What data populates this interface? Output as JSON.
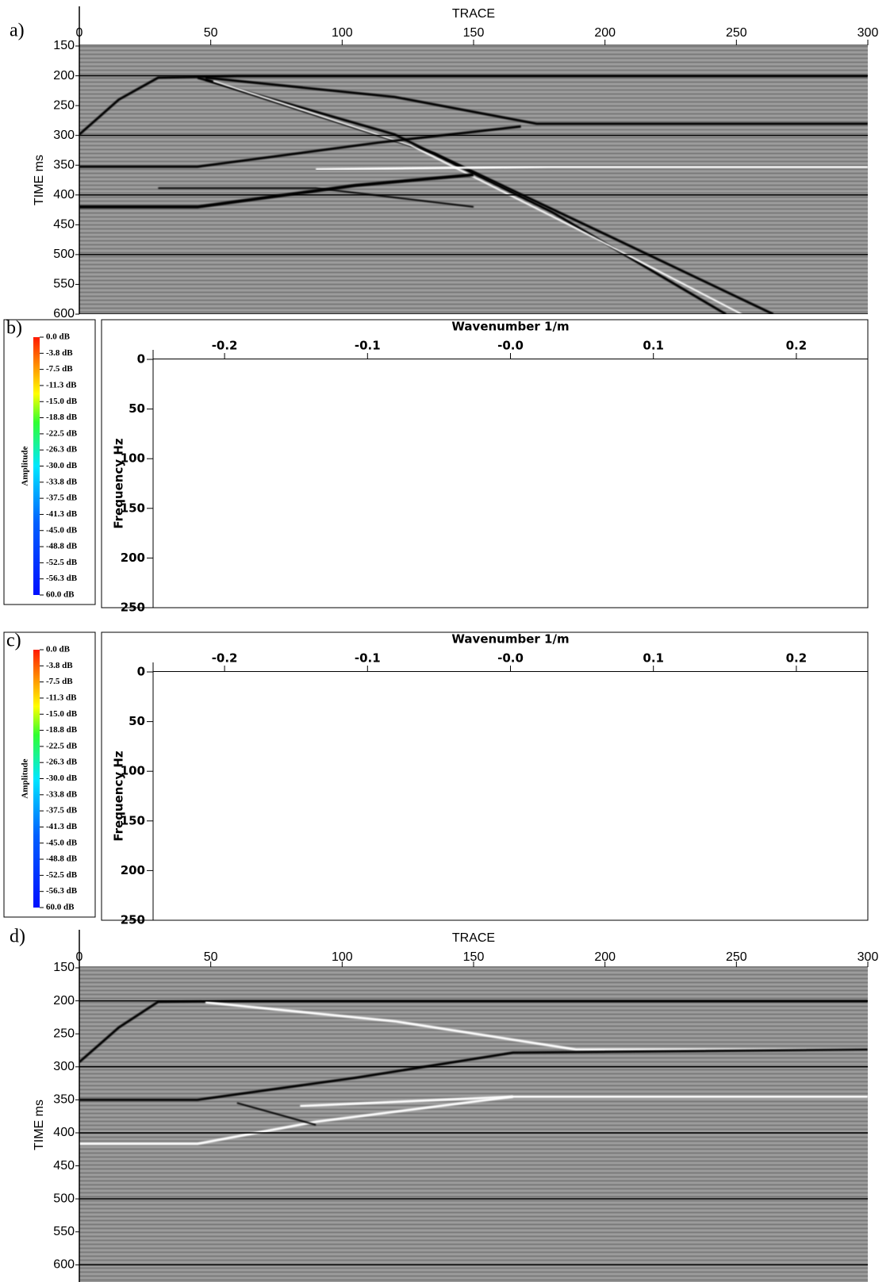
{
  "chart_data": [
    {
      "type": "seismic",
      "panel_label": "a)",
      "xlabel": "TRACE",
      "ylabel": "TIME ms",
      "xlim": [
        0,
        300
      ],
      "xticks": [
        0,
        50,
        100,
        150,
        200,
        250,
        300
      ],
      "ylim": [
        150,
        600
      ],
      "yticks": [
        150,
        200,
        250,
        300,
        350,
        400,
        450,
        500,
        550,
        600
      ]
    },
    {
      "type": "fk",
      "panel_label": "b)",
      "xlabel": "Wavenumber 1/m",
      "ylabel": "Frequency Hz",
      "xlim": [
        -0.25,
        0.25
      ],
      "xticks": [
        -0.2,
        -0.1,
        {
          "value": 0,
          "label": "-0.0"
        },
        0.1,
        0.2
      ],
      "ylim": [
        0,
        250
      ],
      "yticks": [
        0,
        50,
        100,
        150,
        200,
        250
      ],
      "grid": true,
      "hatched": false,
      "colorbar_label": "Amplitude",
      "colorbar_labels": [
        "0.0 dB",
        "-3.8 dB",
        "-7.5 dB",
        "-11.3 dB",
        "-15.0 dB",
        "-18.8 dB",
        "-22.5 dB",
        "-26.3 dB",
        "-30.0 dB",
        "-33.8 dB",
        "-37.5 dB",
        "-41.3 dB",
        "-45.0 dB",
        "-48.8 dB",
        "-52.5 dB",
        "-56.3 dB",
        "60.0 dB"
      ]
    },
    {
      "type": "fk",
      "panel_label": "c)",
      "xlabel": "Wavenumber 1/m",
      "ylabel": "Frequency Hz",
      "xlim": [
        -0.25,
        0.25
      ],
      "xticks": [
        -0.2,
        -0.1,
        {
          "value": 0,
          "label": "-0.0"
        },
        0.1,
        0.2
      ],
      "ylim": [
        0,
        250
      ],
      "yticks": [
        0,
        50,
        100,
        150,
        200,
        250
      ],
      "grid": true,
      "hatched": true,
      "colorbar_label": "Amplitude",
      "colorbar_labels": [
        "0.0 dB",
        "-3.8 dB",
        "-7.5 dB",
        "-11.3 dB",
        "-15.0 dB",
        "-18.8 dB",
        "-22.5 dB",
        "-26.3 dB",
        "-30.0 dB",
        "-33.8 dB",
        "-37.5 dB",
        "-41.3 dB",
        "-45.0 dB",
        "-48.8 dB",
        "-52.5 dB",
        "-56.3 dB",
        "60.0 dB"
      ]
    },
    {
      "type": "seismic",
      "panel_label": "d)",
      "xlabel": "TRACE",
      "ylabel": "TIME ms",
      "xlim": [
        0,
        300
      ],
      "xticks": [
        0,
        50,
        100,
        150,
        200,
        250,
        300
      ],
      "ylim": [
        150,
        626
      ],
      "yticks": [
        150,
        200,
        250,
        300,
        350,
        400,
        450,
        500,
        550,
        600
      ]
    }
  ]
}
